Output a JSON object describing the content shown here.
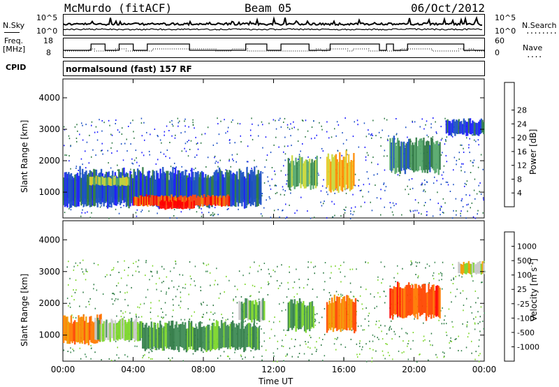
{
  "header": {
    "station": "McMurdo (fitACF)",
    "beam": "Beam 05",
    "date": "06/Oct/2012"
  },
  "top_panel": {
    "left_label": "N.Sky",
    "right_label": "N.Search",
    "right_label_marker": "........",
    "left_ticks": [
      "10^5",
      "10^0"
    ],
    "right_ticks": [
      "10^5",
      "10^0"
    ]
  },
  "freq_panel": {
    "left_label_1": "Freq.",
    "left_label_2": "[MHz]",
    "right_label": "Nave",
    "right_label_marker": "....",
    "left_ticks": [
      "18",
      "8"
    ],
    "right_ticks": [
      "60",
      "0"
    ]
  },
  "cpid_panel": {
    "label": "CPID",
    "text": "normalsound (fast) 157 RF"
  },
  "chart_data": [
    {
      "type": "heatmap",
      "quantity": "Power",
      "ylabel": "Slant Range [km]",
      "ylim": [
        180,
        4600
      ],
      "yticks": [
        "1000",
        "2000",
        "3000",
        "4000"
      ],
      "xlim": [
        0,
        24
      ],
      "xticks": [
        "00:00",
        "04:00",
        "08:00",
        "12:00",
        "16:00",
        "20:00",
        "00:00"
      ],
      "colorbar": {
        "label": "Power [dB]",
        "ticks": [
          "4",
          "8",
          "12",
          "16",
          "20",
          "24",
          "28"
        ],
        "colors": [
          "#1b1bff",
          "#1a4fc4",
          "#2f7a44",
          "#56a86b",
          "#c9d83a",
          "#f2c423",
          "#ff8a00",
          "#ff4a10",
          "#ff0000"
        ]
      },
      "regions": [
        {
          "t0": 0.0,
          "t1": 11.3,
          "r0": 700,
          "r1": 1500,
          "level": 3
        },
        {
          "t0": 0.0,
          "t1": 11.3,
          "r0": 500,
          "r1": 1700,
          "level": 1
        },
        {
          "t0": 4.0,
          "t1": 9.5,
          "r0": 550,
          "r1": 900,
          "level": 7
        },
        {
          "t0": 5.5,
          "t1": 7.5,
          "r0": 450,
          "r1": 750,
          "level": 8
        },
        {
          "t0": 1.5,
          "t1": 3.8,
          "r0": 1200,
          "r1": 1500,
          "level": 4
        },
        {
          "t0": 12.8,
          "t1": 14.5,
          "r0": 1100,
          "r1": 2100,
          "level": 3
        },
        {
          "t0": 15.0,
          "t1": 16.6,
          "r0": 1000,
          "r1": 2200,
          "level": 5
        },
        {
          "t0": 18.6,
          "t1": 21.5,
          "r0": 1600,
          "r1": 2700,
          "level": 2
        },
        {
          "t0": 21.8,
          "t1": 24.0,
          "r0": 2800,
          "r1": 3300,
          "level": 1
        }
      ]
    },
    {
      "type": "heatmap",
      "quantity": "Velocity",
      "ylabel": "Slant Range [km]",
      "ylim": [
        180,
        4600
      ],
      "yticks": [
        "1000",
        "2000",
        "3000",
        "4000"
      ],
      "xlim": [
        0,
        24
      ],
      "xticks": [
        "00:00",
        "04:00",
        "08:00",
        "12:00",
        "16:00",
        "20:00",
        "00:00"
      ],
      "xlabel": "Time UT",
      "colorbar": {
        "label": "Velocity [m s-1]",
        "label_main": "Velocity  [m s",
        "label_sup": "-1",
        "label_end": "]",
        "ticks": [
          "1000",
          "500",
          "100",
          "25",
          "-25",
          "-100",
          "-500",
          "-1000"
        ],
        "colors": [
          "#1a40c8",
          "#2f7a44",
          "#3e8a55",
          "#7cd62a",
          "#c8c8c8",
          "#f29a00",
          "#ff7a00",
          "#ff4500",
          "#ff0000"
        ]
      },
      "regions": [
        {
          "t0": 0.0,
          "t1": 2.2,
          "r0": 700,
          "r1": 1600,
          "level": 6
        },
        {
          "t0": 1.8,
          "t1": 4.5,
          "r0": 800,
          "r1": 1500,
          "level": 3
        },
        {
          "t0": 4.5,
          "t1": 11.2,
          "r0": 500,
          "r1": 1400,
          "level": 2
        },
        {
          "t0": 10.0,
          "t1": 11.5,
          "r0": 1400,
          "r1": 2100,
          "level": 3
        },
        {
          "t0": 12.8,
          "t1": 14.3,
          "r0": 1100,
          "r1": 2100,
          "level": 2
        },
        {
          "t0": 15.0,
          "t1": 16.7,
          "r0": 1100,
          "r1": 2200,
          "level": 6
        },
        {
          "t0": 18.6,
          "t1": 21.5,
          "r0": 1500,
          "r1": 2600,
          "level": 7
        },
        {
          "t0": 22.5,
          "t1": 24.0,
          "r0": 2900,
          "r1": 3300,
          "level": 4
        }
      ]
    }
  ]
}
